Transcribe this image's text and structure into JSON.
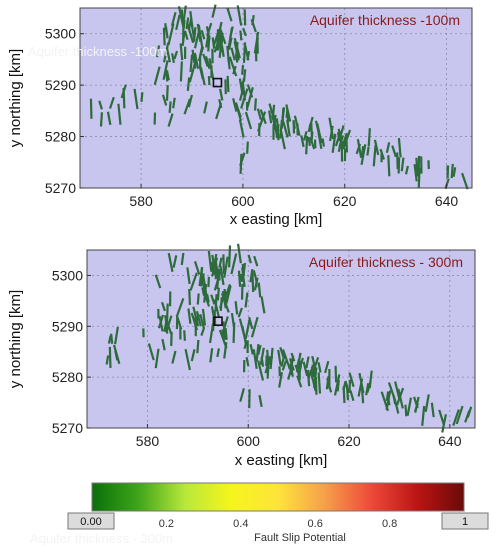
{
  "chart_data": [
    {
      "type": "scatter",
      "title": "Aquifer thickness -100m",
      "xlabel": "x easting [km]",
      "ylabel": "y northing [km]",
      "xlim": [
        568,
        645
      ],
      "ylim": [
        5270,
        5305
      ],
      "xticks": [
        "580",
        "600",
        "620",
        "640"
      ],
      "yticks": [
        "5270",
        "5280",
        "5290",
        "5300"
      ],
      "grid": true,
      "background": "#c8c6ee",
      "segment_color": "#2e6b3c",
      "marker": {
        "x": 595,
        "y": 5290.5,
        "symbol": "square"
      }
    },
    {
      "type": "scatter",
      "title": "Aquifer thickness - 300m",
      "xlabel": "x easting [km]",
      "ylabel": "y northing [km]",
      "xlim": [
        568,
        645
      ],
      "ylim": [
        5270,
        5305
      ],
      "xticks": [
        "580",
        "600",
        "620",
        "640"
      ],
      "yticks": [
        "5270",
        "5280",
        "5290",
        "5300"
      ],
      "grid": true,
      "background": "#c8c6ee",
      "segment_color": "#2e6b3c",
      "marker": {
        "x": 594,
        "y": 5291,
        "symbol": "square"
      }
    }
  ],
  "colorbar": {
    "label": "Fault Slip Potential",
    "ticks": [
      "0.2",
      "0.4",
      "0.6",
      "0.8"
    ],
    "min_label": "0.00",
    "max_label": "1",
    "stops": [
      "#0a6f0a",
      "#3fa51a",
      "#b8e83a",
      "#f6f51c",
      "#fde43a",
      "#f6a04a",
      "#ee4a3a",
      "#bb1414",
      "#6a0a0a"
    ]
  },
  "watermarks": [
    "Aquifer thickness -100m",
    "Aquifer thickness - 300m"
  ]
}
